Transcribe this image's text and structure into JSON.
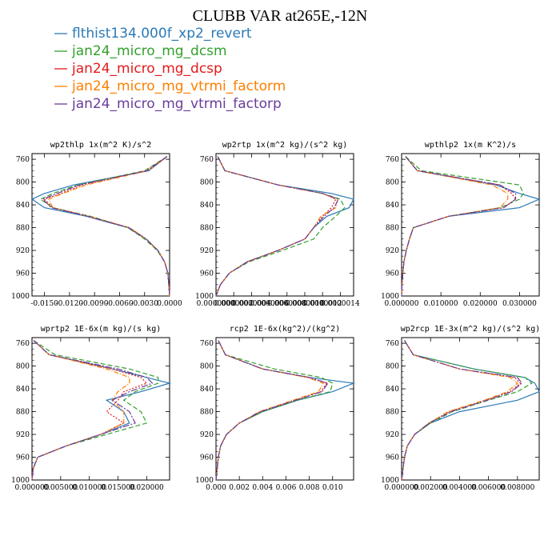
{
  "figure_title": "CLUBB VAR at265E,-12N",
  "legend": [
    {
      "label": "flthist134.000f_xp2_revert",
      "color": "#2a7ab8",
      "dash": "none"
    },
    {
      "label": "jan24_micro_mg_dcsm",
      "color": "#33a02c",
      "dash": "6,3"
    },
    {
      "label": "jan24_micro_mg_dcsp",
      "color": "#e31a1c",
      "dash": "2,2"
    },
    {
      "label": "jan24_micro_mg_vtrmi_factorm",
      "color": "#ff7f00",
      "dash": "6,2,1,2"
    },
    {
      "label": "jan24_micro_mg_vtrmi_factorp",
      "color": "#6a3d9a",
      "dash": "8,2,2,2"
    }
  ],
  "chart_data": [
    {
      "type": "line",
      "title": "wp2thlp   1x(m^2 K)/s^2",
      "xlim": [
        -0.0165,
        0.0
      ],
      "ylim": [
        1000,
        750
      ],
      "xticks": [
        -0.015,
        -0.012,
        -0.009,
        -0.006,
        -0.003,
        0.0
      ],
      "xtick_labels": [
        "-0.0150",
        "-0.0120",
        "-0.0090",
        "-0.0060",
        "-0.0030",
        "0.0000"
      ],
      "yticks": [
        760,
        800,
        840,
        880,
        920,
        960,
        1000
      ],
      "y": [
        755,
        780,
        805,
        820,
        830,
        845,
        860,
        880,
        900,
        920,
        940,
        960,
        980,
        1000
      ],
      "series": [
        {
          "name": "flthist134.000f_xp2_revert",
          "values": [
            -0.0003,
            -0.0025,
            -0.0115,
            -0.015,
            -0.0165,
            -0.015,
            -0.01,
            -0.005,
            -0.0028,
            -0.0014,
            -0.0006,
            -0.0002,
            -0.0001,
            0.0
          ]
        },
        {
          "name": "jan24_micro_mg_dcsm",
          "values": [
            -0.0003,
            -0.003,
            -0.011,
            -0.014,
            -0.0155,
            -0.014,
            -0.0095,
            -0.005,
            -0.003,
            -0.0015,
            -0.0006,
            -0.0002,
            -0.0001,
            0.0
          ]
        },
        {
          "name": "jan24_micro_mg_dcsp",
          "values": [
            -0.0003,
            -0.0028,
            -0.0105,
            -0.013,
            -0.015,
            -0.014,
            -0.0098,
            -0.0048,
            -0.0028,
            -0.0014,
            -0.0006,
            -0.0002,
            -0.0001,
            0.0
          ]
        },
        {
          "name": "jan24_micro_mg_vtrmi_factorm",
          "values": [
            -0.0003,
            -0.0026,
            -0.01,
            -0.0128,
            -0.0145,
            -0.014,
            -0.0097,
            -0.0048,
            -0.0028,
            -0.0014,
            -0.0006,
            -0.0002,
            -0.0001,
            0.0
          ]
        },
        {
          "name": "jan24_micro_mg_vtrmi_factorp",
          "values": [
            -0.0003,
            -0.0027,
            -0.0108,
            -0.0135,
            -0.0152,
            -0.0142,
            -0.0098,
            -0.0049,
            -0.0028,
            -0.0014,
            -0.0006,
            -0.0002,
            -0.0001,
            0.0
          ]
        }
      ]
    },
    {
      "type": "line",
      "title": "wp2rtp   1x(m^2 kg)/(s^2 kg)",
      "xlim": [
        0,
        1.55e-06
      ],
      "ylim": [
        1000,
        750
      ],
      "xticks": [
        0,
        2e-07,
        4e-07,
        6e-07,
        8e-07,
        1e-06,
        1.2e-06,
        1.4e-06
      ],
      "xtick_labels": [
        "0.0000000",
        "0.0000002",
        "0.0000004",
        "0.0000006",
        "0.0000008",
        "0.0000010",
        "0.0000012",
        "0.0000014"
      ],
      "yticks": [
        760,
        800,
        840,
        880,
        920,
        960,
        1000
      ],
      "y": [
        755,
        780,
        805,
        820,
        830,
        845,
        860,
        880,
        900,
        920,
        940,
        960,
        980,
        1000
      ],
      "series": [
        {
          "name": "flthist134.000f_xp2_revert",
          "values": [
            2e-08,
            1e-07,
            7e-07,
            1.3e-06,
            1.55e-06,
            1.5e-06,
            1.25e-06,
            1.1e-06,
            1e-06,
            7e-07,
            3.5e-07,
            1.5e-07,
            5e-08,
            0.0
          ]
        },
        {
          "name": "jan24_micro_mg_dcsm",
          "values": [
            2e-08,
            1e-07,
            7e-07,
            1.2e-06,
            1.4e-06,
            1.45e-06,
            1.35e-06,
            1.2e-06,
            1.1e-06,
            7.5e-07,
            3.7e-07,
            1.5e-07,
            5e-08,
            0.0
          ]
        },
        {
          "name": "jan24_micro_mg_dcsp",
          "values": [
            2e-08,
            1e-07,
            7e-07,
            1.2e-06,
            1.35e-06,
            1.3e-06,
            1.2e-06,
            1.1e-06,
            1e-06,
            7e-07,
            3.5e-07,
            1.5e-07,
            5e-08,
            0.0
          ]
        },
        {
          "name": "jan24_micro_mg_vtrmi_factorm",
          "values": [
            2e-08,
            1e-07,
            7e-07,
            1.2e-06,
            1.37e-06,
            1.35e-06,
            1.18e-06,
            1.1e-06,
            1e-06,
            7e-07,
            3.5e-07,
            1.5e-07,
            5e-08,
            0.0
          ]
        },
        {
          "name": "jan24_micro_mg_vtrmi_factorp",
          "values": [
            2e-08,
            1e-07,
            7e-07,
            1.2e-06,
            1.38e-06,
            1.33e-06,
            1.22e-06,
            1.1e-06,
            1e-06,
            7e-07,
            3.5e-07,
            1.5e-07,
            5e-08,
            0.0
          ]
        }
      ]
    },
    {
      "type": "line",
      "title": "wpthlp2   1x(m K^2)/s",
      "xlim": [
        0,
        0.035
      ],
      "ylim": [
        1000,
        750
      ],
      "xticks": [
        0,
        0.01,
        0.02,
        0.03
      ],
      "xtick_labels": [
        "0.000000",
        "0.010000",
        "0.020000",
        "0.030000"
      ],
      "yticks": [
        760,
        800,
        840,
        880,
        920,
        960,
        1000
      ],
      "y": [
        755,
        780,
        805,
        820,
        830,
        845,
        860,
        880,
        900,
        920,
        940,
        960,
        980,
        1000
      ],
      "series": [
        {
          "name": "flthist134.000f_xp2_revert",
          "values": [
            0.001,
            0.004,
            0.024,
            0.03,
            0.035,
            0.03,
            0.012,
            0.003,
            0.002,
            0.0012,
            0.0006,
            0.0003,
            0.0001,
            0.0
          ]
        },
        {
          "name": "jan24_micro_mg_dcsm",
          "values": [
            0.001,
            0.005,
            0.03,
            0.031,
            0.03,
            0.025,
            0.012,
            0.003,
            0.002,
            0.0012,
            0.0006,
            0.0003,
            0.0001,
            0.0
          ]
        },
        {
          "name": "jan24_micro_mg_dcsp",
          "values": [
            0.001,
            0.004,
            0.025,
            0.028,
            0.029,
            0.026,
            0.012,
            0.003,
            0.002,
            0.0012,
            0.0006,
            0.0003,
            0.0001,
            0.0
          ]
        },
        {
          "name": "jan24_micro_mg_vtrmi_factorm",
          "values": [
            0.001,
            0.004,
            0.023,
            0.027,
            0.027,
            0.025,
            0.012,
            0.003,
            0.002,
            0.0012,
            0.0006,
            0.0003,
            0.0001,
            0.0
          ]
        },
        {
          "name": "jan24_micro_mg_vtrmi_factorp",
          "values": [
            0.001,
            0.004,
            0.025,
            0.029,
            0.029,
            0.026,
            0.012,
            0.003,
            0.002,
            0.0012,
            0.0006,
            0.0003,
            0.0001,
            0.0
          ]
        }
      ]
    },
    {
      "type": "line",
      "title": "wprtp2   1E-6x(m kg)/(s kg)",
      "xlim": [
        0,
        0.024
      ],
      "ylim": [
        1000,
        750
      ],
      "xticks": [
        0,
        0.005,
        0.01,
        0.015,
        0.02
      ],
      "xtick_labels": [
        "0.000000",
        "0.005000",
        "0.010000",
        "0.015000",
        "0.020000"
      ],
      "yticks": [
        760,
        800,
        840,
        880,
        920,
        960,
        1000
      ],
      "y": [
        755,
        780,
        805,
        820,
        830,
        845,
        860,
        880,
        900,
        920,
        940,
        960,
        980,
        1000
      ],
      "series": [
        {
          "name": "flthist134.000f_xp2_revert",
          "values": [
            0.0003,
            0.003,
            0.014,
            0.02,
            0.024,
            0.019,
            0.013,
            0.016,
            0.017,
            0.012,
            0.006,
            0.001,
            0.0002,
            0.0
          ]
        },
        {
          "name": "jan24_micro_mg_dcsm",
          "values": [
            0.0003,
            0.004,
            0.017,
            0.022,
            0.022,
            0.018,
            0.016,
            0.019,
            0.02,
            0.013,
            0.006,
            0.001,
            0.0002,
            0.0
          ]
        },
        {
          "name": "jan24_micro_mg_dcsp",
          "values": [
            0.0003,
            0.003,
            0.014,
            0.019,
            0.02,
            0.016,
            0.015,
            0.013,
            0.016,
            0.012,
            0.006,
            0.001,
            0.0002,
            0.0
          ]
        },
        {
          "name": "jan24_micro_mg_vtrmi_factorm",
          "values": [
            0.0003,
            0.003,
            0.013,
            0.017,
            0.017,
            0.015,
            0.014,
            0.016,
            0.016,
            0.012,
            0.006,
            0.001,
            0.0002,
            0.0
          ]
        },
        {
          "name": "jan24_micro_mg_vtrmi_factorp",
          "values": [
            0.0003,
            0.003,
            0.015,
            0.02,
            0.021,
            0.017,
            0.014,
            0.017,
            0.018,
            0.012,
            0.006,
            0.001,
            0.0002,
            0.0
          ]
        }
      ]
    },
    {
      "type": "line",
      "title": "rcp2   1E-6x(kg^2)/(kg^2)",
      "xlim": [
        0,
        0.0118
      ],
      "ylim": [
        1000,
        750
      ],
      "xticks": [
        0,
        0.002,
        0.004,
        0.006,
        0.008,
        0.01
      ],
      "xtick_labels": [
        "0.000",
        "0.002",
        "0.004",
        "0.006",
        "0.008",
        "0.010"
      ],
      "yticks": [
        760,
        800,
        840,
        880,
        920,
        960,
        1000
      ],
      "y": [
        755,
        780,
        805,
        820,
        830,
        845,
        860,
        880,
        900,
        920,
        940,
        960,
        980,
        1000
      ],
      "series": [
        {
          "name": "flthist134.000f_xp2_revert",
          "values": [
            0.0002,
            0.0008,
            0.004,
            0.008,
            0.0118,
            0.01,
            0.007,
            0.004,
            0.002,
            0.0009,
            0.0004,
            0.0002,
            0.0001,
            0.0
          ]
        },
        {
          "name": "jan24_micro_mg_dcsm",
          "values": [
            0.0002,
            0.0008,
            0.005,
            0.009,
            0.01,
            0.0098,
            0.007,
            0.004,
            0.002,
            0.0009,
            0.0004,
            0.0002,
            0.0001,
            0.0
          ]
        },
        {
          "name": "jan24_micro_mg_dcsp",
          "values": [
            0.0002,
            0.0008,
            0.004,
            0.008,
            0.0095,
            0.009,
            0.0068,
            0.0038,
            0.002,
            0.0009,
            0.0004,
            0.0002,
            0.0001,
            0.0
          ]
        },
        {
          "name": "jan24_micro_mg_vtrmi_factorm",
          "values": [
            0.0002,
            0.0008,
            0.004,
            0.0078,
            0.0092,
            0.0088,
            0.0066,
            0.0037,
            0.002,
            0.0009,
            0.0004,
            0.0002,
            0.0001,
            0.0
          ]
        },
        {
          "name": "jan24_micro_mg_vtrmi_factorp",
          "values": [
            0.0002,
            0.0008,
            0.004,
            0.008,
            0.0096,
            0.0091,
            0.0068,
            0.0038,
            0.002,
            0.0009,
            0.0004,
            0.0002,
            0.0001,
            0.0
          ]
        }
      ]
    },
    {
      "type": "line",
      "title": "wp2rcp   1E-3x(m^2 kg)/(s^2 kg)",
      "xlim": [
        0,
        0.0095
      ],
      "ylim": [
        1000,
        750
      ],
      "xticks": [
        0,
        0.002,
        0.004,
        0.006,
        0.008
      ],
      "xtick_labels": [
        "0.000000",
        "0.002000",
        "0.004000",
        "0.006000",
        "0.008000"
      ],
      "yticks": [
        760,
        800,
        840,
        880,
        920,
        960,
        1000
      ],
      "y": [
        755,
        780,
        805,
        820,
        830,
        845,
        860,
        880,
        900,
        920,
        940,
        960,
        980,
        1000
      ],
      "series": [
        {
          "name": "flthist134.000f_xp2_revert",
          "values": [
            0.0002,
            0.0008,
            0.005,
            0.0085,
            0.0092,
            0.0095,
            0.008,
            0.004,
            0.002,
            0.0009,
            0.0004,
            0.0002,
            0.0001,
            0.0
          ]
        },
        {
          "name": "jan24_micro_mg_dcsm",
          "values": [
            0.0002,
            0.0008,
            0.005,
            0.0085,
            0.009,
            0.008,
            0.006,
            0.0035,
            0.002,
            0.0009,
            0.0004,
            0.0002,
            0.0001,
            0.0
          ]
        },
        {
          "name": "jan24_micro_mg_dcsp",
          "values": [
            0.0002,
            0.0008,
            0.004,
            0.0078,
            0.0082,
            0.0075,
            0.0058,
            0.0033,
            0.0019,
            0.0009,
            0.0004,
            0.0002,
            0.0001,
            0.0
          ]
        },
        {
          "name": "jan24_micro_mg_vtrmi_factorm",
          "values": [
            0.0002,
            0.0008,
            0.004,
            0.0075,
            0.008,
            0.0073,
            0.0057,
            0.0032,
            0.0019,
            0.0009,
            0.0004,
            0.0002,
            0.0001,
            0.0
          ]
        },
        {
          "name": "jan24_micro_mg_vtrmi_factorp",
          "values": [
            0.0002,
            0.0008,
            0.004,
            0.008,
            0.0083,
            0.0076,
            0.0059,
            0.0034,
            0.0019,
            0.0009,
            0.0004,
            0.0002,
            0.0001,
            0.0
          ]
        }
      ]
    }
  ]
}
